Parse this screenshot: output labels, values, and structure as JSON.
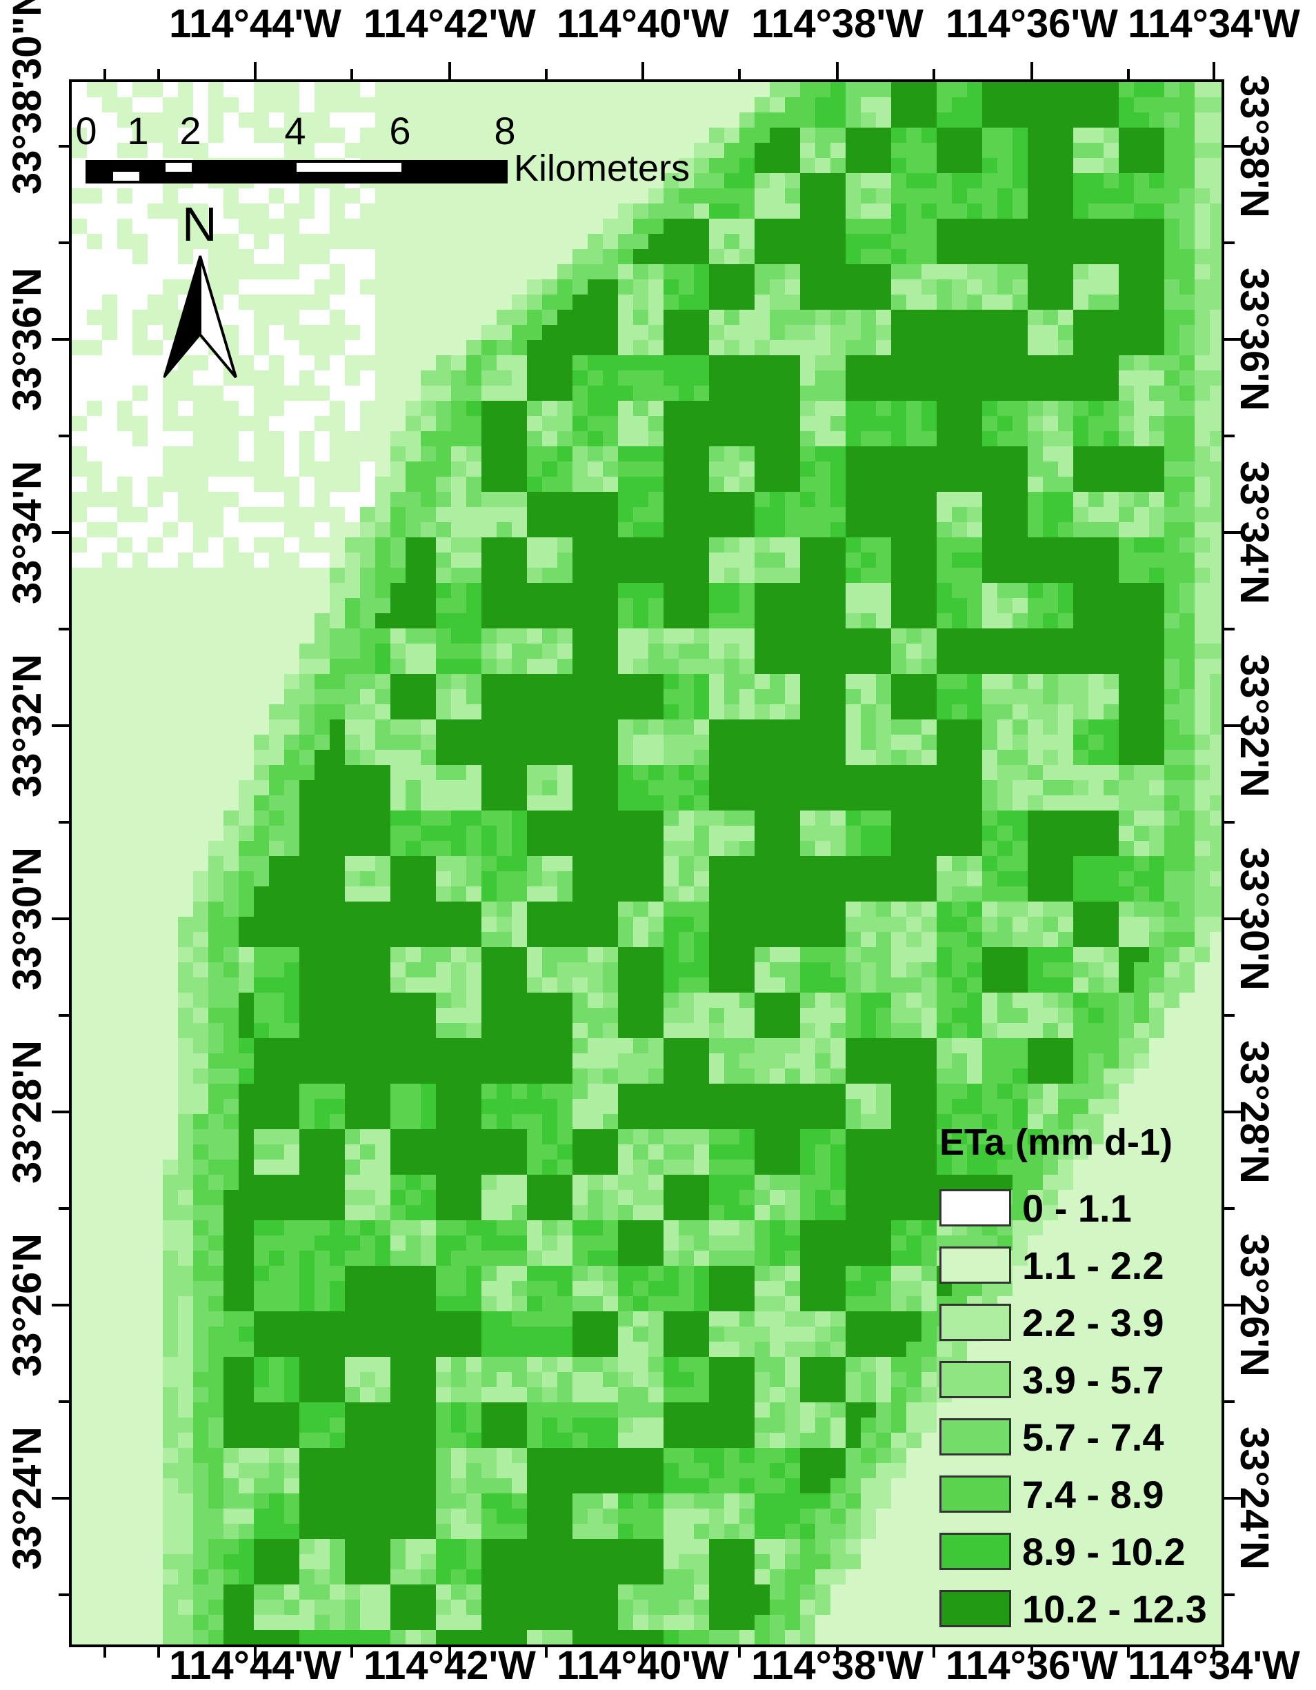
{
  "map": {
    "lon_labels": [
      "114°44'W",
      "114°42'W",
      "114°40'W",
      "114°38'W",
      "114°36'W",
      "114°34'W"
    ],
    "lat_labels": [
      "33°38'30\"N",
      "33°38'N",
      "33°36'N",
      "33°34'N",
      "33°32'N",
      "33°30'N",
      "33°28'N",
      "33°26'N",
      "33°24'N"
    ],
    "right_lat_labels": [
      "33°38'N",
      "33°36'N",
      "33°34'N",
      "33°32'N",
      "33°30'N",
      "33°28'N",
      "33°26'N",
      "33°24'N"
    ]
  },
  "scale_bar": {
    "numbers": [
      "0",
      "1",
      "2",
      "4",
      "6",
      "8"
    ],
    "unit": "Kilometers"
  },
  "north_arrow": {
    "letter": "N"
  },
  "legend": {
    "title": "ETa (mm d-1)",
    "items": [
      {
        "label": "0 - 1.1",
        "color": "#ffffff"
      },
      {
        "label": "1.1 - 2.2",
        "color": "#d2f7c4"
      },
      {
        "label": "2.2 - 3.9",
        "color": "#aeeea0"
      },
      {
        "label": "3.9 - 5.7",
        "color": "#90e583"
      },
      {
        "label": "5.7 - 7.4",
        "color": "#74dc68"
      },
      {
        "label": "7.4 - 8.9",
        "color": "#5ad34f"
      },
      {
        "label": "8.9 - 10.2",
        "color": "#3ec836"
      },
      {
        "label": "10.2 - 12.3",
        "color": "#229a14"
      }
    ]
  }
}
